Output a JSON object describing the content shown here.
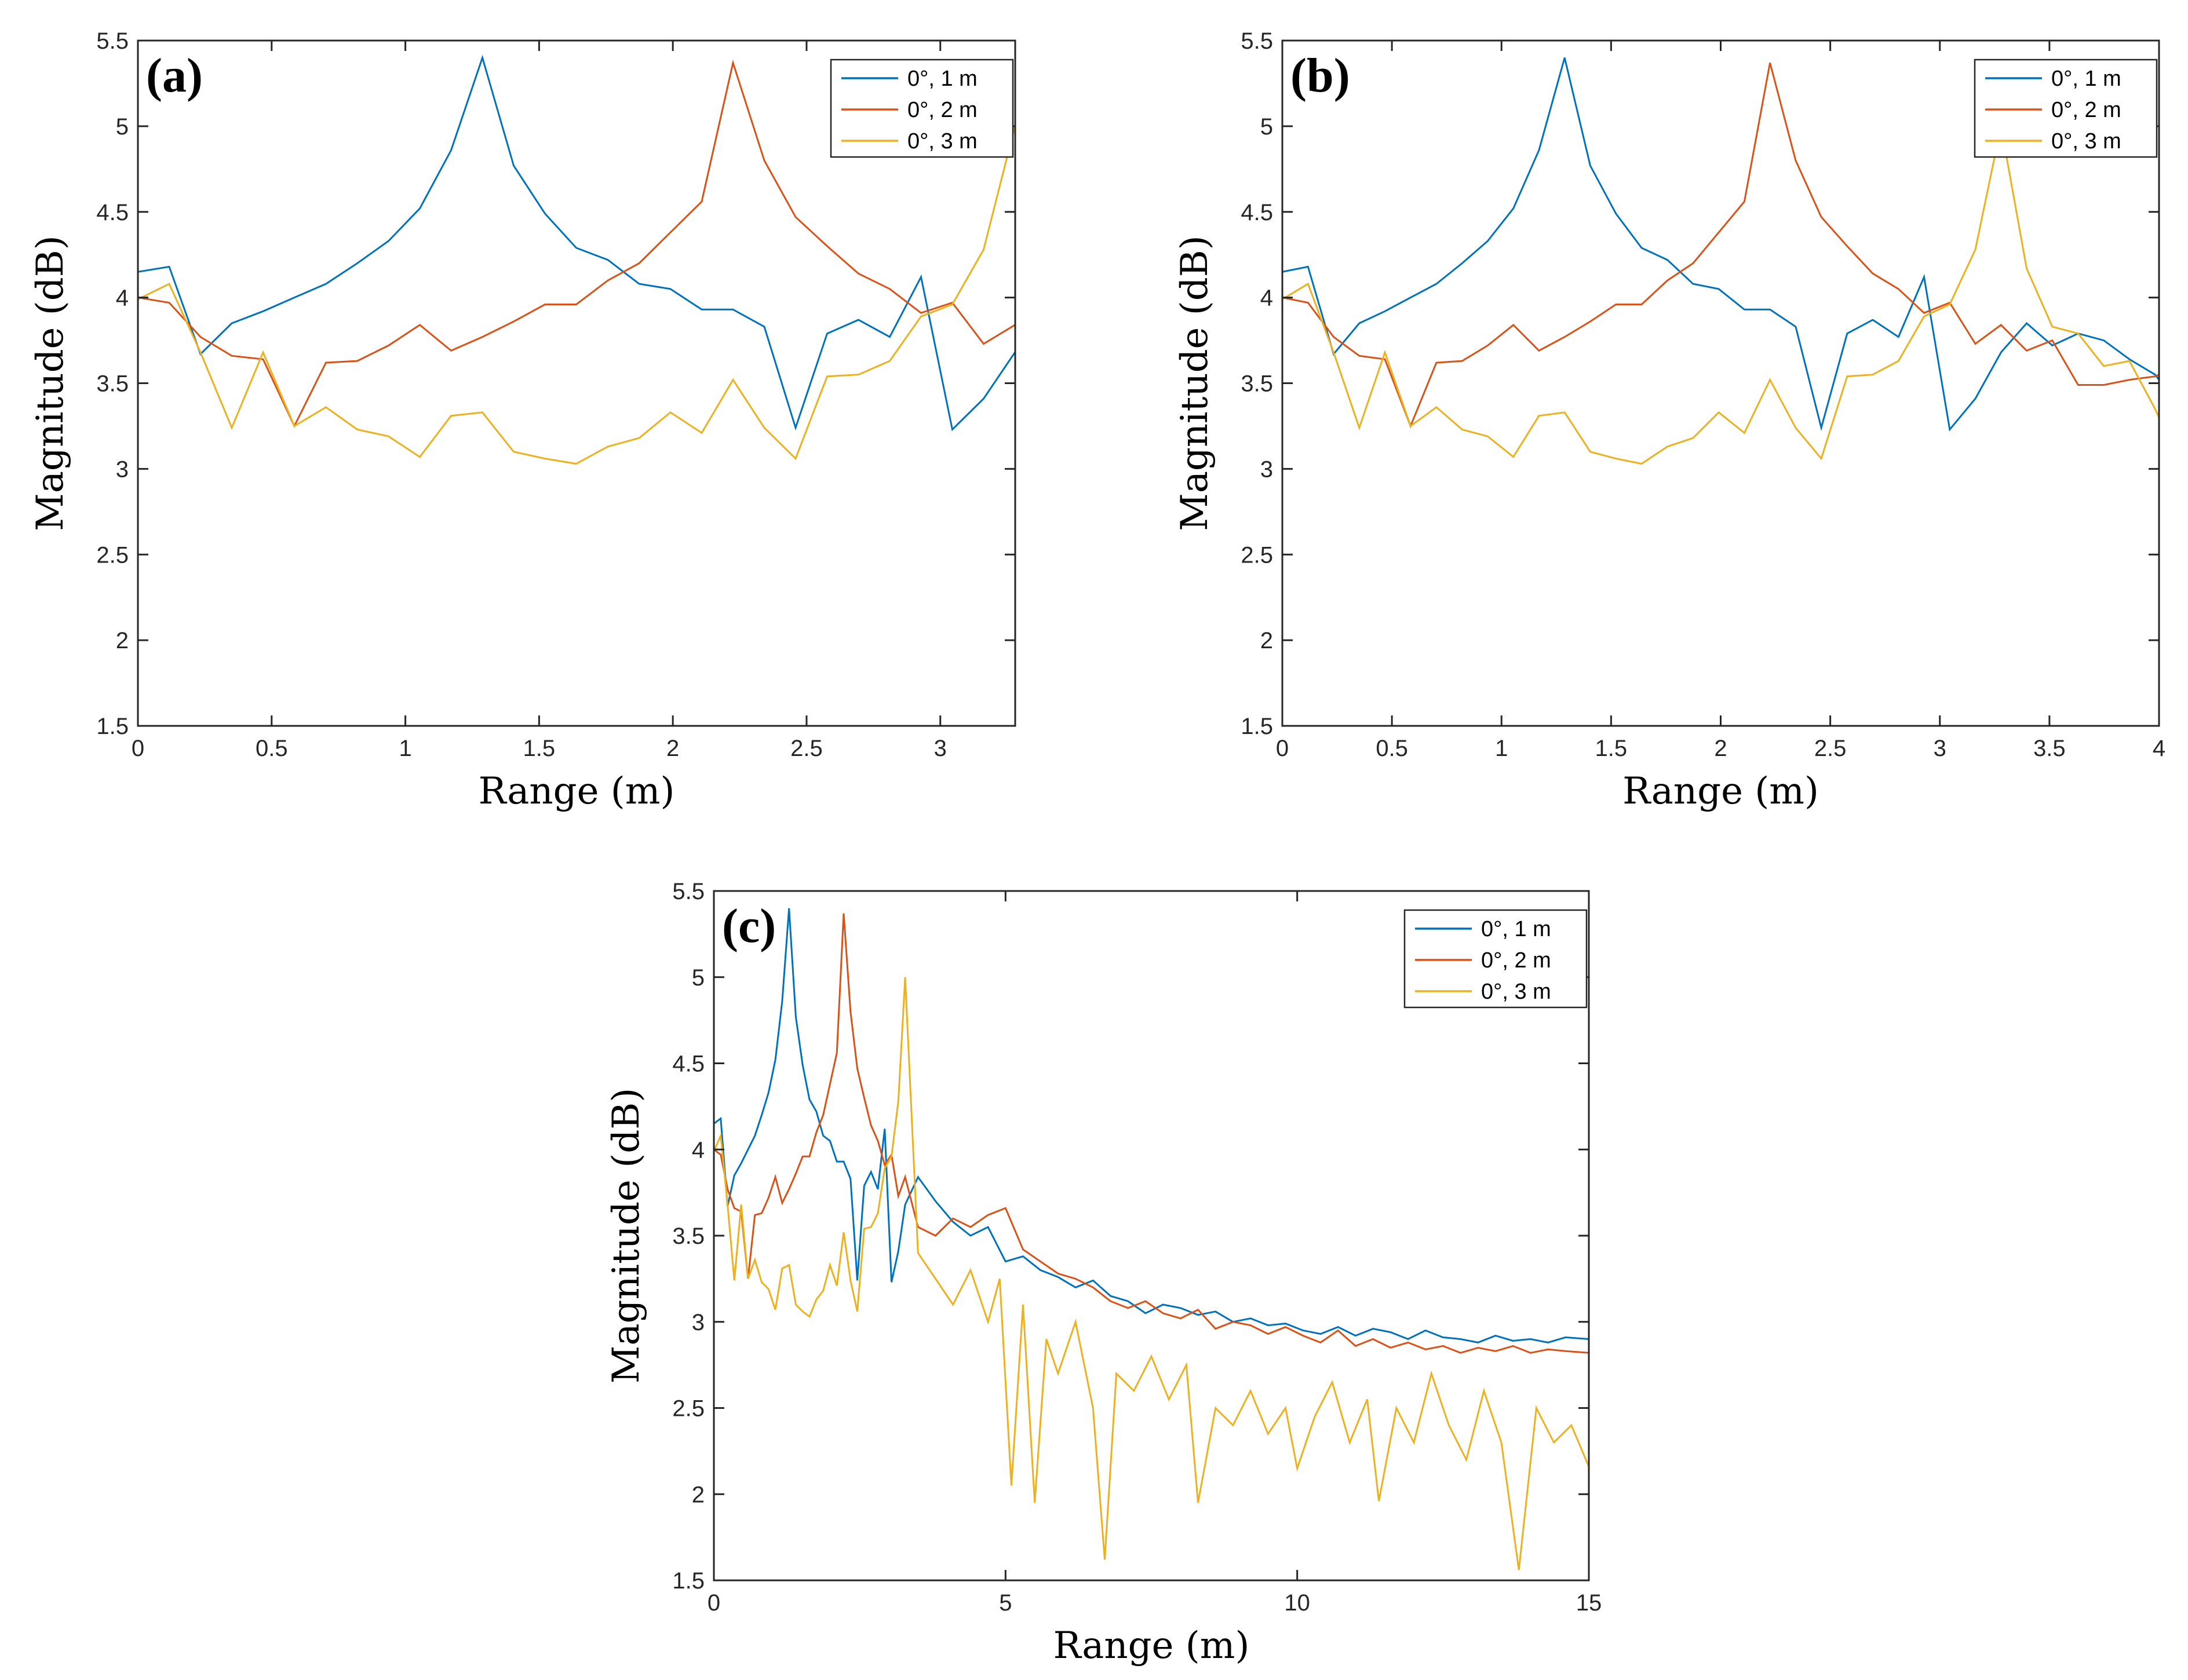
{
  "figure": "Magnitude vs Range, three panels",
  "colors": {
    "s1": "#0072BD",
    "s2": "#D95319",
    "s3": "#EDB120"
  },
  "chart_data": [
    {
      "type": "line",
      "panel_label": "(a)",
      "xlabel": "Range (m)",
      "ylabel": "Magnitude (dB)",
      "xlim": [
        0,
        3.28
      ],
      "ylim": [
        1.5,
        5.5
      ],
      "xticks": [
        0,
        0.5,
        1,
        1.5,
        2,
        2.5,
        3
      ],
      "yticks": [
        1.5,
        2,
        2.5,
        3,
        3.5,
        4,
        4.5,
        5,
        5.5
      ],
      "legend": "top-right",
      "series": [
        {
          "name": "0°, 1 m",
          "x": [
            0,
            0.117,
            0.234,
            0.351,
            0.468,
            0.585,
            0.703,
            0.82,
            0.937,
            1.054,
            1.171,
            1.288,
            1.405,
            1.522,
            1.639,
            1.757,
            1.874,
            1.991,
            2.108,
            2.225,
            2.342,
            2.459,
            2.577,
            2.694,
            2.811,
            2.928,
            3.045,
            3.162,
            3.279
          ],
          "y": [
            4.15,
            4.18,
            3.67,
            3.85,
            3.92,
            4.0,
            4.08,
            4.2,
            4.33,
            4.52,
            4.86,
            5.4,
            4.77,
            4.49,
            4.29,
            4.22,
            4.08,
            4.05,
            3.93,
            3.93,
            3.83,
            3.24,
            3.79,
            3.87,
            3.77,
            4.12,
            3.23,
            3.41,
            3.68
          ]
        },
        {
          "name": "0°, 2 m",
          "x": [
            0,
            0.117,
            0.234,
            0.351,
            0.468,
            0.585,
            0.703,
            0.82,
            0.937,
            1.054,
            1.171,
            1.288,
            1.405,
            1.522,
            1.639,
            1.757,
            1.874,
            1.991,
            2.108,
            2.225,
            2.342,
            2.459,
            2.577,
            2.694,
            2.811,
            2.928,
            3.045,
            3.162,
            3.279
          ],
          "y": [
            4.0,
            3.97,
            3.77,
            3.66,
            3.64,
            3.25,
            3.62,
            3.63,
            3.72,
            3.84,
            3.69,
            3.77,
            3.86,
            3.96,
            3.96,
            4.1,
            4.2,
            4.38,
            4.56,
            5.37,
            4.8,
            4.47,
            4.3,
            4.14,
            4.05,
            3.91,
            3.97,
            3.73,
            3.84
          ]
        },
        {
          "name": "0°, 3 m",
          "x": [
            0,
            0.117,
            0.234,
            0.351,
            0.468,
            0.585,
            0.703,
            0.82,
            0.937,
            1.054,
            1.171,
            1.288,
            1.405,
            1.522,
            1.639,
            1.757,
            1.874,
            1.991,
            2.108,
            2.225,
            2.342,
            2.459,
            2.577,
            2.694,
            2.811,
            2.928,
            3.045,
            3.162,
            3.279
          ],
          "y": [
            3.99,
            4.08,
            3.68,
            3.24,
            3.68,
            3.25,
            3.36,
            3.23,
            3.19,
            3.07,
            3.31,
            3.33,
            3.1,
            3.06,
            3.03,
            3.13,
            3.18,
            3.33,
            3.21,
            3.52,
            3.24,
            3.06,
            3.54,
            3.55,
            3.63,
            3.89,
            3.96,
            4.28,
            5.0
          ]
        }
      ]
    },
    {
      "type": "line",
      "panel_label": "(b)",
      "xlabel": "Range (m)",
      "ylabel": "Magnitude (dB)",
      "xlim": [
        0,
        4
      ],
      "ylim": [
        1.5,
        5.5
      ],
      "xticks": [
        0,
        0.5,
        1,
        1.5,
        2,
        2.5,
        3,
        3.5,
        4
      ],
      "yticks": [
        1.5,
        2,
        2.5,
        3,
        3.5,
        4,
        4.5,
        5,
        5.5
      ],
      "legend": "top-right",
      "series": [
        {
          "name": "0°, 1 m",
          "x": [
            0,
            0.117,
            0.234,
            0.351,
            0.468,
            0.585,
            0.703,
            0.82,
            0.937,
            1.054,
            1.171,
            1.288,
            1.405,
            1.522,
            1.639,
            1.757,
            1.874,
            1.991,
            2.108,
            2.225,
            2.342,
            2.459,
            2.577,
            2.694,
            2.811,
            2.928,
            3.045,
            3.162,
            3.279,
            3.396,
            3.513,
            3.631,
            3.748,
            3.865,
            3.982,
            4.0
          ],
          "y": [
            4.15,
            4.18,
            3.67,
            3.85,
            3.92,
            4.0,
            4.08,
            4.2,
            4.33,
            4.52,
            4.86,
            5.4,
            4.77,
            4.49,
            4.29,
            4.22,
            4.08,
            4.05,
            3.93,
            3.93,
            3.83,
            3.24,
            3.79,
            3.87,
            3.77,
            4.12,
            3.23,
            3.41,
            3.68,
            3.85,
            3.72,
            3.79,
            3.75,
            3.64,
            3.55,
            3.52
          ]
        },
        {
          "name": "0°, 2 m",
          "x": [
            0,
            0.117,
            0.234,
            0.351,
            0.468,
            0.585,
            0.703,
            0.82,
            0.937,
            1.054,
            1.171,
            1.288,
            1.405,
            1.522,
            1.639,
            1.757,
            1.874,
            1.991,
            2.108,
            2.225,
            2.342,
            2.459,
            2.577,
            2.694,
            2.811,
            2.928,
            3.045,
            3.162,
            3.279,
            3.396,
            3.513,
            3.631,
            3.748,
            3.865,
            3.982,
            4.0
          ],
          "y": [
            4.0,
            3.97,
            3.77,
            3.66,
            3.64,
            3.25,
            3.62,
            3.63,
            3.72,
            3.84,
            3.69,
            3.77,
            3.86,
            3.96,
            3.96,
            4.1,
            4.2,
            4.38,
            4.56,
            5.37,
            4.8,
            4.47,
            4.3,
            4.14,
            4.05,
            3.91,
            3.97,
            3.73,
            3.84,
            3.69,
            3.75,
            3.49,
            3.49,
            3.52,
            3.54,
            3.55
          ]
        },
        {
          "name": "0°, 3 m",
          "x": [
            0,
            0.117,
            0.234,
            0.351,
            0.468,
            0.585,
            0.703,
            0.82,
            0.937,
            1.054,
            1.171,
            1.288,
            1.405,
            1.522,
            1.639,
            1.757,
            1.874,
            1.991,
            2.108,
            2.225,
            2.342,
            2.459,
            2.577,
            2.694,
            2.811,
            2.928,
            3.045,
            3.162,
            3.279,
            3.396,
            3.513,
            3.631,
            3.748,
            3.865,
            3.982,
            4.0
          ],
          "y": [
            3.99,
            4.08,
            3.68,
            3.24,
            3.68,
            3.25,
            3.36,
            3.23,
            3.19,
            3.07,
            3.31,
            3.33,
            3.1,
            3.06,
            3.03,
            3.13,
            3.18,
            3.33,
            3.21,
            3.52,
            3.24,
            3.06,
            3.54,
            3.55,
            3.63,
            3.89,
            3.96,
            4.28,
            5.0,
            4.17,
            3.83,
            3.79,
            3.6,
            3.63,
            3.35,
            3.3
          ]
        }
      ]
    },
    {
      "type": "line",
      "panel_label": "(c)",
      "xlabel": "Range (m)",
      "ylabel": "Magnitude (dB)",
      "xlim": [
        0,
        15
      ],
      "ylim": [
        1.5,
        5.5
      ],
      "xticks": [
        0,
        5,
        10,
        15
      ],
      "yticks": [
        1.5,
        2,
        2.5,
        3,
        3.5,
        4,
        4.5,
        5,
        5.5
      ],
      "legend": "top-right",
      "series": [
        {
          "name": "0°, 1 m",
          "x": [
            0,
            0.117,
            0.234,
            0.351,
            0.468,
            0.585,
            0.703,
            0.82,
            0.937,
            1.054,
            1.171,
            1.288,
            1.405,
            1.522,
            1.639,
            1.757,
            1.874,
            1.991,
            2.108,
            2.225,
            2.342,
            2.459,
            2.577,
            2.694,
            2.811,
            2.928,
            3.045,
            3.162,
            3.279,
            3.5,
            3.8,
            4.1,
            4.4,
            4.7,
            5.0,
            5.3,
            5.6,
            5.9,
            6.2,
            6.5,
            6.8,
            7.1,
            7.4,
            7.7,
            8.0,
            8.3,
            8.6,
            8.9,
            9.2,
            9.5,
            9.8,
            10.1,
            10.4,
            10.7,
            11.0,
            11.3,
            11.6,
            11.9,
            12.2,
            12.5,
            12.8,
            13.1,
            13.4,
            13.7,
            14.0,
            14.3,
            14.6,
            15.0
          ],
          "y": [
            4.15,
            4.18,
            3.67,
            3.85,
            3.92,
            4.0,
            4.08,
            4.2,
            4.33,
            4.52,
            4.86,
            5.4,
            4.77,
            4.49,
            4.29,
            4.22,
            4.08,
            4.05,
            3.93,
            3.93,
            3.83,
            3.24,
            3.79,
            3.87,
            3.77,
            4.12,
            3.23,
            3.41,
            3.68,
            3.84,
            3.7,
            3.58,
            3.5,
            3.55,
            3.35,
            3.38,
            3.3,
            3.26,
            3.2,
            3.24,
            3.15,
            3.12,
            3.05,
            3.1,
            3.08,
            3.04,
            3.06,
            3.0,
            3.02,
            2.98,
            2.99,
            2.95,
            2.93,
            2.97,
            2.92,
            2.96,
            2.94,
            2.9,
            2.95,
            2.91,
            2.9,
            2.88,
            2.92,
            2.89,
            2.9,
            2.88,
            2.91,
            2.9
          ]
        },
        {
          "name": "0°, 2 m",
          "x": [
            0,
            0.117,
            0.234,
            0.351,
            0.468,
            0.585,
            0.703,
            0.82,
            0.937,
            1.054,
            1.171,
            1.288,
            1.405,
            1.522,
            1.639,
            1.757,
            1.874,
            1.991,
            2.108,
            2.225,
            2.342,
            2.459,
            2.577,
            2.694,
            2.811,
            2.928,
            3.045,
            3.162,
            3.279,
            3.5,
            3.8,
            4.1,
            4.4,
            4.7,
            5.0,
            5.3,
            5.6,
            5.9,
            6.2,
            6.5,
            6.8,
            7.1,
            7.4,
            7.7,
            8.0,
            8.3,
            8.6,
            8.9,
            9.2,
            9.5,
            9.8,
            10.1,
            10.4,
            10.7,
            11.0,
            11.3,
            11.6,
            11.9,
            12.2,
            12.5,
            12.8,
            13.1,
            13.4,
            13.7,
            14.0,
            14.3,
            14.6,
            15.0
          ],
          "y": [
            4.0,
            3.97,
            3.77,
            3.66,
            3.64,
            3.25,
            3.62,
            3.63,
            3.72,
            3.84,
            3.69,
            3.77,
            3.86,
            3.96,
            3.96,
            4.1,
            4.2,
            4.38,
            4.56,
            5.37,
            4.8,
            4.47,
            4.3,
            4.14,
            4.05,
            3.91,
            3.97,
            3.73,
            3.84,
            3.55,
            3.5,
            3.6,
            3.55,
            3.62,
            3.66,
            3.42,
            3.35,
            3.28,
            3.25,
            3.2,
            3.12,
            3.08,
            3.12,
            3.05,
            3.02,
            3.07,
            2.96,
            3.0,
            2.98,
            2.93,
            2.97,
            2.92,
            2.88,
            2.95,
            2.86,
            2.9,
            2.85,
            2.88,
            2.84,
            2.86,
            2.82,
            2.85,
            2.83,
            2.86,
            2.82,
            2.84,
            2.83,
            2.82
          ]
        },
        {
          "name": "0°, 3 m",
          "x": [
            0,
            0.117,
            0.234,
            0.351,
            0.468,
            0.585,
            0.703,
            0.82,
            0.937,
            1.054,
            1.171,
            1.288,
            1.405,
            1.522,
            1.639,
            1.757,
            1.874,
            1.991,
            2.108,
            2.225,
            2.342,
            2.459,
            2.577,
            2.694,
            2.811,
            2.928,
            3.045,
            3.162,
            3.279,
            3.5,
            3.8,
            4.1,
            4.4,
            4.7,
            4.9,
            5.1,
            5.3,
            5.5,
            5.7,
            5.9,
            6.2,
            6.5,
            6.7,
            6.9,
            7.2,
            7.5,
            7.8,
            8.1,
            8.3,
            8.6,
            8.9,
            9.2,
            9.5,
            9.8,
            10.0,
            10.3,
            10.6,
            10.9,
            11.2,
            11.4,
            11.7,
            12.0,
            12.3,
            12.6,
            12.9,
            13.2,
            13.5,
            13.8,
            14.1,
            14.4,
            14.7,
            15.0
          ],
          "y": [
            3.99,
            4.08,
            3.68,
            3.24,
            3.68,
            3.25,
            3.36,
            3.23,
            3.19,
            3.07,
            3.31,
            3.33,
            3.1,
            3.06,
            3.03,
            3.13,
            3.18,
            3.33,
            3.21,
            3.52,
            3.24,
            3.06,
            3.54,
            3.55,
            3.63,
            3.89,
            3.96,
            4.28,
            5.0,
            3.4,
            3.25,
            3.1,
            3.3,
            3.0,
            3.25,
            2.05,
            3.1,
            1.95,
            2.9,
            2.7,
            3.0,
            2.5,
            1.62,
            2.7,
            2.6,
            2.8,
            2.55,
            2.75,
            1.95,
            2.5,
            2.4,
            2.6,
            2.35,
            2.5,
            2.15,
            2.45,
            2.65,
            2.3,
            2.55,
            1.96,
            2.5,
            2.3,
            2.7,
            2.4,
            2.2,
            2.6,
            2.3,
            1.56,
            2.5,
            2.3,
            2.4,
            2.16
          ]
        }
      ]
    }
  ]
}
